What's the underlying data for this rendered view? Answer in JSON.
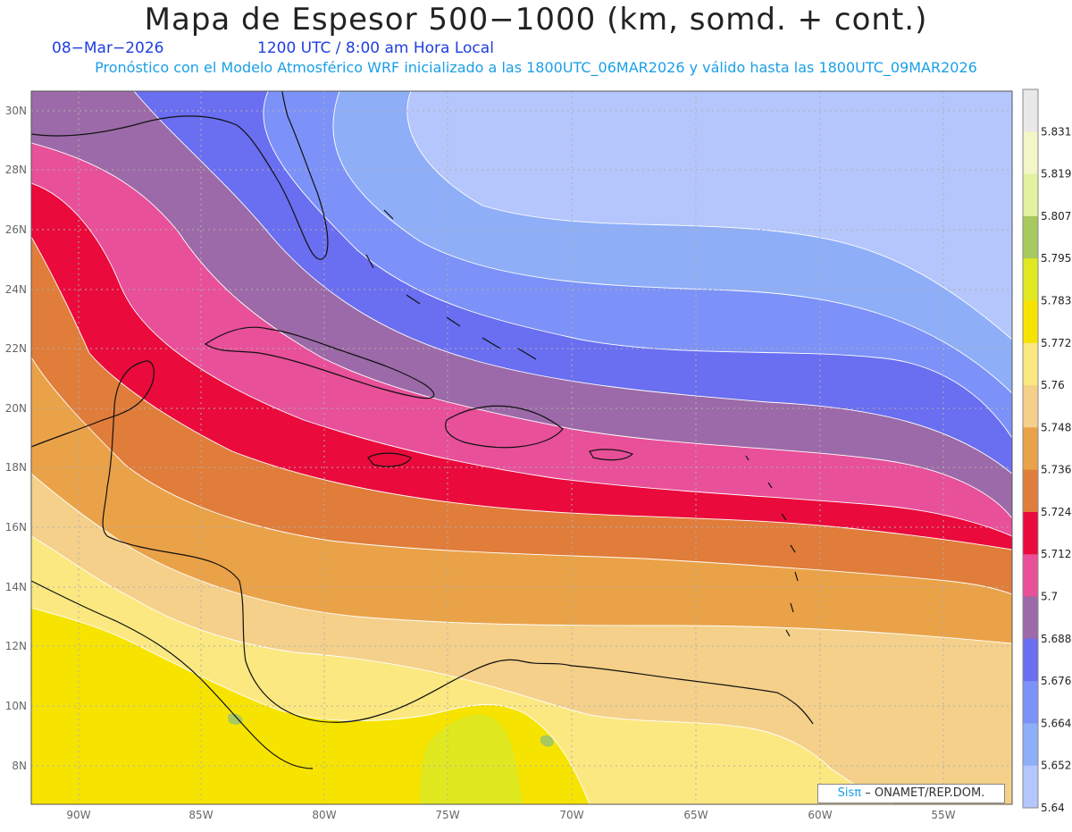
{
  "header": {
    "title": "Mapa de Espesor 500−1000 (km, somd. + cont.)",
    "date": "08−Mar−2026",
    "time": "1200 UTC / 8:00 am Hora Local",
    "forecast_note": "Pronóstico con el Modelo Atmosférico WRF inicializado a las 1800UTC_06MAR2026 y válido hasta las  1800UTC_09MAR2026"
  },
  "axes": {
    "lon_labels": [
      "90W",
      "85W",
      "80W",
      "75W",
      "70W",
      "65W",
      "60W",
      "55W"
    ],
    "lat_labels": [
      "30N",
      "28N",
      "26N",
      "24N",
      "22N",
      "20N",
      "18N",
      "16N",
      "14N",
      "12N",
      "10N",
      "8N"
    ]
  },
  "colorbar": {
    "values": [
      "5.831",
      "5.819",
      "5.807",
      "5.795",
      "5.783",
      "5.772",
      "5.76",
      "5.748",
      "5.736",
      "5.724",
      "5.712",
      "5.7",
      "5.688",
      "5.676",
      "5.664",
      "5.652",
      "5.64"
    ],
    "colors": [
      "#e8e8e8",
      "#f2f6c8",
      "#e2f2a0",
      "#a8c860",
      "#e0e820",
      "#f6e400",
      "#fbe880",
      "#f4d08a",
      "#eaa248",
      "#e07d3a",
      "#ea0a3c",
      "#e8509a",
      "#9c6aa8",
      "#6a6ef0",
      "#7c92f8",
      "#8eaef8",
      "#b4c6fc"
    ]
  },
  "credit": {
    "brand": "Sisπ",
    "org": "– ONAMET/REP.DOM."
  }
}
